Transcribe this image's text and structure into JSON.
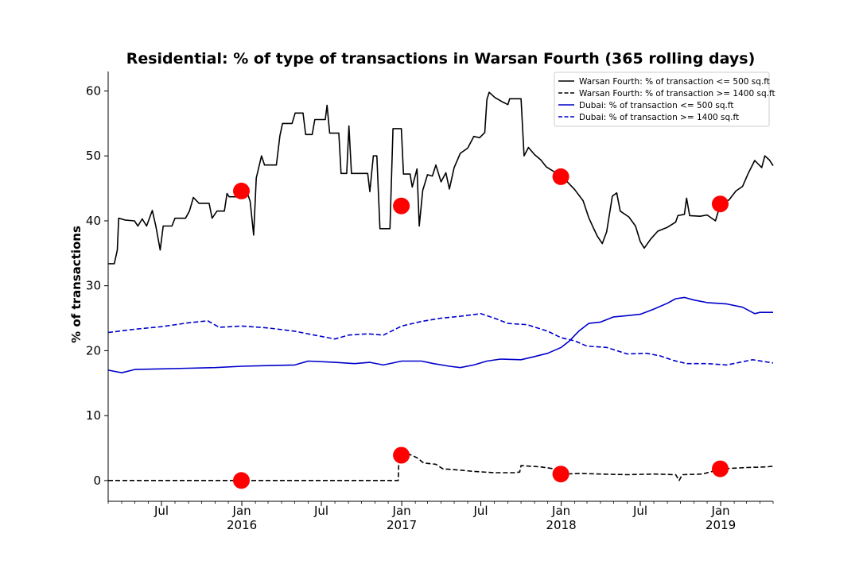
{
  "chart_data": {
    "type": "line",
    "title": "Residential: % of type of transactions in Warsan Fourth (365 rolling days)",
    "xlabel": "",
    "ylabel": "% of transactions",
    "xlim": [
      "2015-03-01",
      "2019-05-01"
    ],
    "ylim": [
      -3.2,
      63
    ],
    "yticks": [
      0,
      10,
      20,
      30,
      40,
      50,
      60
    ],
    "xticks": [
      {
        "date": "2015-07-01",
        "label": "Jul",
        "sub": ""
      },
      {
        "date": "2016-01-01",
        "label": "Jan",
        "sub": "2016"
      },
      {
        "date": "2016-07-01",
        "label": "Jul",
        "sub": ""
      },
      {
        "date": "2017-01-01",
        "label": "Jan",
        "sub": "2017"
      },
      {
        "date": "2017-07-01",
        "label": "Jul",
        "sub": ""
      },
      {
        "date": "2018-01-01",
        "label": "Jan",
        "sub": "2018"
      },
      {
        "date": "2018-07-01",
        "label": "Jul",
        "sub": ""
      },
      {
        "date": "2019-01-01",
        "label": "Jan",
        "sub": "2019"
      }
    ],
    "legend_position": "top-right",
    "grid": false,
    "series": [
      {
        "name": "Warsan Fourth: % of transaction <= 500 sq.ft",
        "color": "#000000",
        "dash": "solid",
        "points": [
          [
            "2015-03-01",
            33.4
          ],
          [
            "2015-03-15",
            33.4
          ],
          [
            "2015-03-22",
            35.5
          ],
          [
            "2015-03-25",
            40.4
          ],
          [
            "2015-04-10",
            40.1
          ],
          [
            "2015-04-30",
            40.0
          ],
          [
            "2015-05-08",
            39.2
          ],
          [
            "2015-05-18",
            40.3
          ],
          [
            "2015-05-28",
            39.2
          ],
          [
            "2015-06-10",
            41.6
          ],
          [
            "2015-06-18",
            39.2
          ],
          [
            "2015-06-28",
            35.5
          ],
          [
            "2015-07-05",
            39.2
          ],
          [
            "2015-07-25",
            39.2
          ],
          [
            "2015-08-01",
            40.4
          ],
          [
            "2015-08-25",
            40.4
          ],
          [
            "2015-09-03",
            41.5
          ],
          [
            "2015-09-12",
            43.6
          ],
          [
            "2015-09-25",
            42.7
          ],
          [
            "2015-10-18",
            42.7
          ],
          [
            "2015-10-25",
            40.4
          ],
          [
            "2015-11-05",
            41.5
          ],
          [
            "2015-11-22",
            41.5
          ],
          [
            "2015-11-28",
            44.2
          ],
          [
            "2015-12-03",
            43.7
          ],
          [
            "2015-12-20",
            43.7
          ],
          [
            "2015-12-30",
            44.6
          ],
          [
            "2016-01-12",
            44.6
          ],
          [
            "2016-01-20",
            43.0
          ],
          [
            "2016-01-28",
            37.8
          ],
          [
            "2016-02-03",
            46.6
          ],
          [
            "2016-02-15",
            50.0
          ],
          [
            "2016-02-22",
            48.6
          ],
          [
            "2016-03-20",
            48.6
          ],
          [
            "2016-03-28",
            53.1
          ],
          [
            "2016-04-03",
            55.0
          ],
          [
            "2016-04-25",
            55.0
          ],
          [
            "2016-05-02",
            56.6
          ],
          [
            "2016-05-20",
            56.6
          ],
          [
            "2016-05-26",
            53.3
          ],
          [
            "2016-06-10",
            53.3
          ],
          [
            "2016-06-16",
            55.6
          ],
          [
            "2016-07-10",
            55.6
          ],
          [
            "2016-07-14",
            57.8
          ],
          [
            "2016-07-20",
            53.5
          ],
          [
            "2016-08-10",
            53.5
          ],
          [
            "2016-08-15",
            47.3
          ],
          [
            "2016-08-28",
            47.3
          ],
          [
            "2016-09-02",
            54.6
          ],
          [
            "2016-09-08",
            47.3
          ],
          [
            "2016-10-15",
            47.3
          ],
          [
            "2016-10-20",
            44.5
          ],
          [
            "2016-10-28",
            50.0
          ],
          [
            "2016-11-05",
            50.0
          ],
          [
            "2016-11-12",
            38.8
          ],
          [
            "2016-12-05",
            38.8
          ],
          [
            "2016-12-12",
            54.2
          ],
          [
            "2016-12-31",
            54.2
          ],
          [
            "2017-01-05",
            47.2
          ],
          [
            "2017-01-20",
            47.2
          ],
          [
            "2017-01-25",
            45.2
          ],
          [
            "2017-02-05",
            48.0
          ],
          [
            "2017-02-10",
            39.2
          ],
          [
            "2017-02-18",
            44.7
          ],
          [
            "2017-03-01",
            47.1
          ],
          [
            "2017-03-12",
            46.9
          ],
          [
            "2017-03-20",
            48.6
          ],
          [
            "2017-04-01",
            46.0
          ],
          [
            "2017-04-12",
            47.4
          ],
          [
            "2017-04-20",
            44.9
          ],
          [
            "2017-05-01",
            48.2
          ],
          [
            "2017-05-15",
            50.4
          ],
          [
            "2017-06-01",
            51.2
          ],
          [
            "2017-06-15",
            53.0
          ],
          [
            "2017-06-28",
            52.8
          ],
          [
            "2017-07-10",
            53.6
          ],
          [
            "2017-07-15",
            58.7
          ],
          [
            "2017-07-20",
            59.8
          ],
          [
            "2017-08-02",
            59.0
          ],
          [
            "2017-08-20",
            58.3
          ],
          [
            "2017-09-01",
            57.9
          ],
          [
            "2017-09-05",
            58.8
          ],
          [
            "2017-10-01",
            58.8
          ],
          [
            "2017-10-08",
            50.0
          ],
          [
            "2017-10-18",
            51.3
          ],
          [
            "2017-11-01",
            50.2
          ],
          [
            "2017-11-15",
            49.4
          ],
          [
            "2017-11-28",
            48.3
          ],
          [
            "2017-12-15",
            47.6
          ],
          [
            "2018-01-01",
            46.8
          ],
          [
            "2018-01-15",
            46.0
          ],
          [
            "2018-02-01",
            44.8
          ],
          [
            "2018-02-20",
            43.1
          ],
          [
            "2018-03-05",
            40.5
          ],
          [
            "2018-03-15",
            39.0
          ],
          [
            "2018-03-25",
            37.6
          ],
          [
            "2018-04-05",
            36.5
          ],
          [
            "2018-04-15",
            38.3
          ],
          [
            "2018-04-28",
            43.8
          ],
          [
            "2018-05-08",
            44.3
          ],
          [
            "2018-05-16",
            41.5
          ],
          [
            "2018-06-05",
            40.6
          ],
          [
            "2018-06-20",
            39.2
          ],
          [
            "2018-07-01",
            36.8
          ],
          [
            "2018-07-10",
            35.8
          ],
          [
            "2018-07-25",
            37.2
          ],
          [
            "2018-08-10",
            38.4
          ],
          [
            "2018-09-01",
            39.0
          ],
          [
            "2018-09-20",
            39.8
          ],
          [
            "2018-09-25",
            40.8
          ],
          [
            "2018-10-10",
            41.0
          ],
          [
            "2018-10-15",
            43.5
          ],
          [
            "2018-10-22",
            40.8
          ],
          [
            "2018-11-15",
            40.7
          ],
          [
            "2018-12-01",
            40.9
          ],
          [
            "2018-12-20",
            40.0
          ],
          [
            "2019-01-01",
            42.7
          ],
          [
            "2019-01-20",
            43.2
          ],
          [
            "2019-02-05",
            44.6
          ],
          [
            "2019-02-20",
            45.3
          ],
          [
            "2019-03-05",
            47.3
          ],
          [
            "2019-03-20",
            49.3
          ],
          [
            "2019-04-05",
            48.2
          ],
          [
            "2019-04-12",
            50.0
          ],
          [
            "2019-04-22",
            49.4
          ],
          [
            "2019-05-01",
            48.5
          ]
        ]
      },
      {
        "name": "Warsan Fourth: % of transaction >= 1400 sq.ft",
        "color": "#000000",
        "dash": "dashed",
        "points": [
          [
            "2015-03-01",
            0.0
          ],
          [
            "2016-12-24",
            0.0
          ],
          [
            "2016-12-26",
            4.7
          ],
          [
            "2017-01-10",
            4.3
          ],
          [
            "2017-02-05",
            3.5
          ],
          [
            "2017-02-20",
            2.7
          ],
          [
            "2017-03-20",
            2.5
          ],
          [
            "2017-04-05",
            1.8
          ],
          [
            "2017-05-15",
            1.6
          ],
          [
            "2017-06-15",
            1.4
          ],
          [
            "2017-08-01",
            1.2
          ],
          [
            "2017-09-15",
            1.2
          ],
          [
            "2017-09-28",
            1.3
          ],
          [
            "2017-10-01",
            2.3
          ],
          [
            "2017-11-15",
            2.1
          ],
          [
            "2017-12-15",
            1.8
          ],
          [
            "2018-01-05",
            1.0
          ],
          [
            "2018-02-15",
            1.1
          ],
          [
            "2018-04-01",
            1.0
          ],
          [
            "2018-06-01",
            0.9
          ],
          [
            "2018-08-01",
            1.0
          ],
          [
            "2018-09-20",
            0.9
          ],
          [
            "2018-09-28",
            0.0
          ],
          [
            "2018-10-05",
            0.9
          ],
          [
            "2018-11-20",
            1.0
          ],
          [
            "2019-01-05",
            1.8
          ],
          [
            "2019-03-01",
            2.0
          ],
          [
            "2019-04-15",
            2.1
          ],
          [
            "2019-05-01",
            2.2
          ]
        ]
      },
      {
        "name": "Dubai: % of transaction <= 500 sq.ft",
        "color": "#0000cc",
        "dash": "solid",
        "points": [
          [
            "2015-03-01",
            17.0
          ],
          [
            "2015-04-01",
            16.6
          ],
          [
            "2015-05-01",
            17.1
          ],
          [
            "2015-07-01",
            17.2
          ],
          [
            "2015-09-01",
            17.3
          ],
          [
            "2015-11-01",
            17.4
          ],
          [
            "2016-01-01",
            17.6
          ],
          [
            "2016-03-01",
            17.7
          ],
          [
            "2016-05-01",
            17.8
          ],
          [
            "2016-06-01",
            18.4
          ],
          [
            "2016-08-01",
            18.2
          ],
          [
            "2016-09-15",
            18.0
          ],
          [
            "2016-10-20",
            18.2
          ],
          [
            "2016-11-20",
            17.8
          ],
          [
            "2017-01-01",
            18.4
          ],
          [
            "2017-02-15",
            18.4
          ],
          [
            "2017-03-15",
            18.0
          ],
          [
            "2017-04-20",
            17.6
          ],
          [
            "2017-05-15",
            17.4
          ],
          [
            "2017-06-15",
            17.8
          ],
          [
            "2017-07-15",
            18.4
          ],
          [
            "2017-08-15",
            18.7
          ],
          [
            "2017-10-01",
            18.6
          ],
          [
            "2017-11-01",
            19.1
          ],
          [
            "2017-12-01",
            19.6
          ],
          [
            "2018-01-01",
            20.5
          ],
          [
            "2018-01-20",
            21.5
          ],
          [
            "2018-02-10",
            23.0
          ],
          [
            "2018-03-05",
            24.2
          ],
          [
            "2018-04-01",
            24.4
          ],
          [
            "2018-05-01",
            25.2
          ],
          [
            "2018-06-01",
            25.4
          ],
          [
            "2018-07-01",
            25.6
          ],
          [
            "2018-08-01",
            26.4
          ],
          [
            "2018-09-01",
            27.3
          ],
          [
            "2018-09-20",
            28.0
          ],
          [
            "2018-10-10",
            28.2
          ],
          [
            "2018-11-01",
            27.8
          ],
          [
            "2018-12-01",
            27.4
          ],
          [
            "2019-01-15",
            27.2
          ],
          [
            "2019-02-20",
            26.7
          ],
          [
            "2019-03-20",
            25.7
          ],
          [
            "2019-04-01",
            25.9
          ],
          [
            "2019-05-01",
            25.9
          ]
        ]
      },
      {
        "name": "Dubai: % of transaction >= 1400 sq.ft",
        "color": "#0000cc",
        "dash": "dashed",
        "points": [
          [
            "2015-03-01",
            22.8
          ],
          [
            "2015-05-01",
            23.3
          ],
          [
            "2015-07-01",
            23.7
          ],
          [
            "2015-09-01",
            24.3
          ],
          [
            "2015-10-15",
            24.6
          ],
          [
            "2015-11-10",
            23.6
          ],
          [
            "2016-01-01",
            23.8
          ],
          [
            "2016-03-01",
            23.5
          ],
          [
            "2016-05-01",
            23.0
          ],
          [
            "2016-06-15",
            22.4
          ],
          [
            "2016-08-01",
            21.8
          ],
          [
            "2016-09-01",
            22.4
          ],
          [
            "2016-10-15",
            22.6
          ],
          [
            "2016-11-20",
            22.4
          ],
          [
            "2017-01-01",
            23.8
          ],
          [
            "2017-02-15",
            24.5
          ],
          [
            "2017-04-01",
            25.0
          ],
          [
            "2017-05-15",
            25.3
          ],
          [
            "2017-07-01",
            25.7
          ],
          [
            "2017-08-01",
            25.0
          ],
          [
            "2017-09-01",
            24.2
          ],
          [
            "2017-10-15",
            24.0
          ],
          [
            "2017-12-01",
            23.0
          ],
          [
            "2018-01-01",
            22.0
          ],
          [
            "2018-02-01",
            21.5
          ],
          [
            "2018-03-01",
            20.7
          ],
          [
            "2018-04-15",
            20.5
          ],
          [
            "2018-06-01",
            19.5
          ],
          [
            "2018-07-15",
            19.6
          ],
          [
            "2018-08-15",
            19.2
          ],
          [
            "2018-09-15",
            18.5
          ],
          [
            "2018-10-15",
            18.0
          ],
          [
            "2018-12-01",
            18.0
          ],
          [
            "2019-01-15",
            17.8
          ],
          [
            "2019-03-15",
            18.6
          ],
          [
            "2019-05-01",
            18.1
          ]
        ]
      }
    ],
    "markers": {
      "color": "#ff0000",
      "points": [
        [
          "2015-12-31",
          44.6
        ],
        [
          "2016-12-31",
          42.3
        ],
        [
          "2017-12-31",
          46.8
        ],
        [
          "2018-12-31",
          42.6
        ],
        [
          "2015-12-31",
          0.0
        ],
        [
          "2016-12-31",
          3.9
        ],
        [
          "2017-12-31",
          1.0
        ],
        [
          "2018-12-31",
          1.8
        ]
      ]
    }
  }
}
